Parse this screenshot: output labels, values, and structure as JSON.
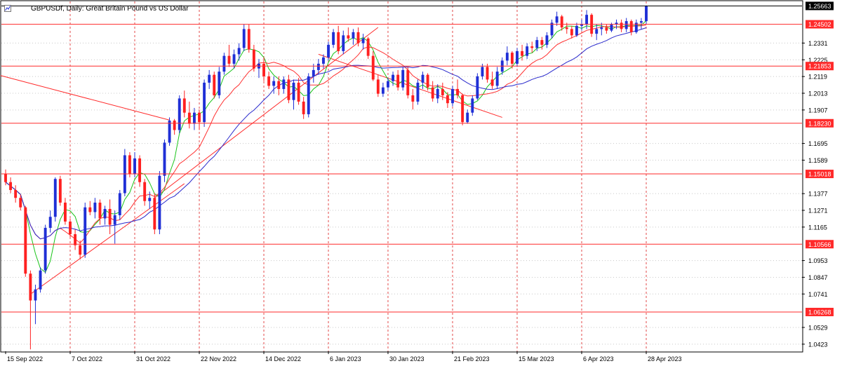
{
  "window": {
    "title": "GBPUSDf, Daily:  Great Britain Pound vs US Dollar"
  },
  "colors": {
    "bull": "#1f2fd6",
    "bear": "#ff2020",
    "ma_fast": "#19c419",
    "ma_mid": "#ff3030",
    "ma_slow": "#2a2acc",
    "grid": "#c8c8c8",
    "vgrid": "#e34a4a",
    "level": "#ff2a2a"
  },
  "chart_data": {
    "type": "candlestick",
    "symbol": "GBPUSDf",
    "timeframe": "Daily",
    "x_ticks": [
      "15 Sep 2022",
      "7 Oct 2022",
      "31 Oct 2022",
      "22 Nov 2022",
      "14 Dec 2022",
      "6 Jan 2023",
      "30 Jan 2023",
      "21 Feb 2023",
      "15 Mar 2023",
      "6 Apr 2023",
      "28 Apr 2023"
    ],
    "y_ticks": [
      1.0423,
      1.0529,
      1.0741,
      1.0847,
      1.0953,
      1.1165,
      1.1271,
      1.1377,
      1.1589,
      1.1695,
      1.1907,
      1.2013,
      1.2119,
      1.2225,
      1.2331
    ],
    "price_levels": [
      1.25663,
      1.24502,
      1.21853,
      1.1823,
      1.15018,
      1.10566,
      1.06268
    ],
    "current_price": 1.25663,
    "ylim": [
      1.0378,
      1.2595
    ],
    "candles": [
      [
        1.15,
        1.153,
        1.143,
        1.145
      ],
      [
        1.145,
        1.148,
        1.138,
        1.14
      ],
      [
        1.14,
        1.143,
        1.132,
        1.135
      ],
      [
        1.135,
        1.137,
        1.127,
        1.129
      ],
      [
        1.129,
        1.13,
        1.085,
        1.087
      ],
      [
        1.087,
        1.089,
        1.039,
        1.07
      ],
      [
        1.07,
        1.08,
        1.055,
        1.077
      ],
      [
        1.077,
        1.091,
        1.075,
        1.089
      ],
      [
        1.089,
        1.118,
        1.087,
        1.116
      ],
      [
        1.116,
        1.127,
        1.113,
        1.123
      ],
      [
        1.123,
        1.148,
        1.12,
        1.147
      ],
      [
        1.147,
        1.149,
        1.13,
        1.132
      ],
      [
        1.132,
        1.135,
        1.118,
        1.12
      ],
      [
        1.12,
        1.122,
        1.11,
        1.112
      ],
      [
        1.112,
        1.115,
        1.102,
        1.105
      ],
      [
        1.105,
        1.108,
        1.096,
        1.099
      ],
      [
        1.099,
        1.132,
        1.097,
        1.129
      ],
      [
        1.129,
        1.133,
        1.124,
        1.126
      ],
      [
        1.126,
        1.135,
        1.122,
        1.132
      ],
      [
        1.132,
        1.134,
        1.118,
        1.122
      ],
      [
        1.122,
        1.13,
        1.118,
        1.128
      ],
      [
        1.128,
        1.134,
        1.112,
        1.118
      ],
      [
        1.118,
        1.127,
        1.106,
        1.124
      ],
      [
        1.124,
        1.14,
        1.121,
        1.138
      ],
      [
        1.138,
        1.166,
        1.136,
        1.162
      ],
      [
        1.162,
        1.164,
        1.148,
        1.15
      ],
      [
        1.15,
        1.164,
        1.148,
        1.16
      ],
      [
        1.16,
        1.162,
        1.142,
        1.145
      ],
      [
        1.145,
        1.147,
        1.13,
        1.133
      ],
      [
        1.133,
        1.139,
        1.128,
        1.135
      ],
      [
        1.135,
        1.138,
        1.112,
        1.115
      ],
      [
        1.115,
        1.152,
        1.112,
        1.149
      ],
      [
        1.149,
        1.172,
        1.145,
        1.17
      ],
      [
        1.17,
        1.186,
        1.168,
        1.184
      ],
      [
        1.184,
        1.185,
        1.175,
        1.178
      ],
      [
        1.178,
        1.2,
        1.176,
        1.198
      ],
      [
        1.198,
        1.203,
        1.186,
        1.189
      ],
      [
        1.189,
        1.196,
        1.179,
        1.182
      ],
      [
        1.182,
        1.192,
        1.178,
        1.189
      ],
      [
        1.189,
        1.191,
        1.178,
        1.183
      ],
      [
        1.183,
        1.21,
        1.18,
        1.208
      ],
      [
        1.208,
        1.216,
        1.204,
        1.213
      ],
      [
        1.213,
        1.215,
        1.198,
        1.2
      ],
      [
        1.2,
        1.218,
        1.198,
        1.215
      ],
      [
        1.215,
        1.227,
        1.213,
        1.225
      ],
      [
        1.225,
        1.232,
        1.218,
        1.22
      ],
      [
        1.22,
        1.229,
        1.217,
        1.226
      ],
      [
        1.226,
        1.233,
        1.222,
        1.23
      ],
      [
        1.23,
        1.245,
        1.228,
        1.242
      ],
      [
        1.242,
        1.245,
        1.227,
        1.229
      ],
      [
        1.229,
        1.232,
        1.215,
        1.217
      ],
      [
        1.217,
        1.223,
        1.211,
        1.22
      ],
      [
        1.22,
        1.224,
        1.209,
        1.212
      ],
      [
        1.212,
        1.215,
        1.204,
        1.206
      ],
      [
        1.206,
        1.212,
        1.201,
        1.209
      ],
      [
        1.209,
        1.212,
        1.2,
        1.204
      ],
      [
        1.204,
        1.212,
        1.201,
        1.21
      ],
      [
        1.21,
        1.213,
        1.195,
        1.197
      ],
      [
        1.197,
        1.21,
        1.191,
        1.208
      ],
      [
        1.208,
        1.211,
        1.194,
        1.196
      ],
      [
        1.196,
        1.199,
        1.185,
        1.188
      ],
      [
        1.188,
        1.214,
        1.186,
        1.212
      ],
      [
        1.212,
        1.22,
        1.208,
        1.216
      ],
      [
        1.216,
        1.223,
        1.213,
        1.22
      ],
      [
        1.22,
        1.226,
        1.217,
        1.224
      ],
      [
        1.224,
        1.234,
        1.222,
        1.232
      ],
      [
        1.232,
        1.242,
        1.23,
        1.24
      ],
      [
        1.24,
        1.244,
        1.226,
        1.228
      ],
      [
        1.228,
        1.241,
        1.226,
        1.238
      ],
      [
        1.238,
        1.243,
        1.234,
        1.236
      ],
      [
        1.236,
        1.242,
        1.232,
        1.24
      ],
      [
        1.24,
        1.243,
        1.231,
        1.233
      ],
      [
        1.233,
        1.239,
        1.229,
        1.236
      ],
      [
        1.236,
        1.237,
        1.223,
        1.225
      ],
      [
        1.225,
        1.228,
        1.209,
        1.21
      ],
      [
        1.21,
        1.213,
        1.199,
        1.201
      ],
      [
        1.201,
        1.208,
        1.199,
        1.205
      ],
      [
        1.205,
        1.211,
        1.203,
        1.209
      ],
      [
        1.209,
        1.215,
        1.206,
        1.213
      ],
      [
        1.213,
        1.216,
        1.203,
        1.205
      ],
      [
        1.205,
        1.218,
        1.203,
        1.216
      ],
      [
        1.216,
        1.218,
        1.198,
        1.2
      ],
      [
        1.2,
        1.204,
        1.191,
        1.196
      ],
      [
        1.196,
        1.21,
        1.194,
        1.208
      ],
      [
        1.208,
        1.215,
        1.204,
        1.213
      ],
      [
        1.213,
        1.214,
        1.203,
        1.205
      ],
      [
        1.205,
        1.209,
        1.196,
        1.198
      ],
      [
        1.198,
        1.207,
        1.195,
        1.204
      ],
      [
        1.204,
        1.208,
        1.197,
        1.2
      ],
      [
        1.2,
        1.202,
        1.192,
        1.195
      ],
      [
        1.195,
        1.206,
        1.193,
        1.204
      ],
      [
        1.204,
        1.21,
        1.198,
        1.2
      ],
      [
        1.2,
        1.201,
        1.181,
        1.183
      ],
      [
        1.183,
        1.191,
        1.182,
        1.189
      ],
      [
        1.189,
        1.2,
        1.187,
        1.198
      ],
      [
        1.198,
        1.214,
        1.197,
        1.212
      ],
      [
        1.212,
        1.22,
        1.21,
        1.218
      ],
      [
        1.218,
        1.22,
        1.208,
        1.21
      ],
      [
        1.21,
        1.215,
        1.204,
        1.206
      ],
      [
        1.206,
        1.218,
        1.204,
        1.215
      ],
      [
        1.215,
        1.224,
        1.213,
        1.222
      ],
      [
        1.222,
        1.231,
        1.219,
        1.227
      ],
      [
        1.227,
        1.228,
        1.217,
        1.22
      ],
      [
        1.22,
        1.23,
        1.218,
        1.228
      ],
      [
        1.228,
        1.232,
        1.222,
        1.225
      ],
      [
        1.225,
        1.233,
        1.223,
        1.231
      ],
      [
        1.231,
        1.234,
        1.227,
        1.23
      ],
      [
        1.23,
        1.237,
        1.228,
        1.235
      ],
      [
        1.235,
        1.237,
        1.229,
        1.232
      ],
      [
        1.232,
        1.24,
        1.23,
        1.238
      ],
      [
        1.238,
        1.248,
        1.236,
        1.246
      ],
      [
        1.246,
        1.253,
        1.244,
        1.25
      ],
      [
        1.25,
        1.251,
        1.241,
        1.243
      ],
      [
        1.243,
        1.246,
        1.239,
        1.242
      ],
      [
        1.242,
        1.244,
        1.236,
        1.238
      ],
      [
        1.238,
        1.246,
        1.237,
        1.244
      ],
      [
        1.244,
        1.248,
        1.241,
        1.245
      ],
      [
        1.245,
        1.254,
        1.242,
        1.251
      ],
      [
        1.251,
        1.252,
        1.237,
        1.239
      ],
      [
        1.239,
        1.245,
        1.235,
        1.242
      ],
      [
        1.242,
        1.246,
        1.238,
        1.243
      ],
      [
        1.243,
        1.245,
        1.239,
        1.241
      ],
      [
        1.241,
        1.246,
        1.24,
        1.245
      ],
      [
        1.245,
        1.248,
        1.242,
        1.246
      ],
      [
        1.246,
        1.248,
        1.24,
        1.242
      ],
      [
        1.242,
        1.249,
        1.24,
        1.247
      ],
      [
        1.247,
        1.248,
        1.238,
        1.24
      ],
      [
        1.24,
        1.248,
        1.239,
        1.246
      ],
      [
        1.246,
        1.249,
        1.242,
        1.247
      ],
      [
        1.247,
        1.257,
        1.245,
        1.2566
      ]
    ]
  }
}
